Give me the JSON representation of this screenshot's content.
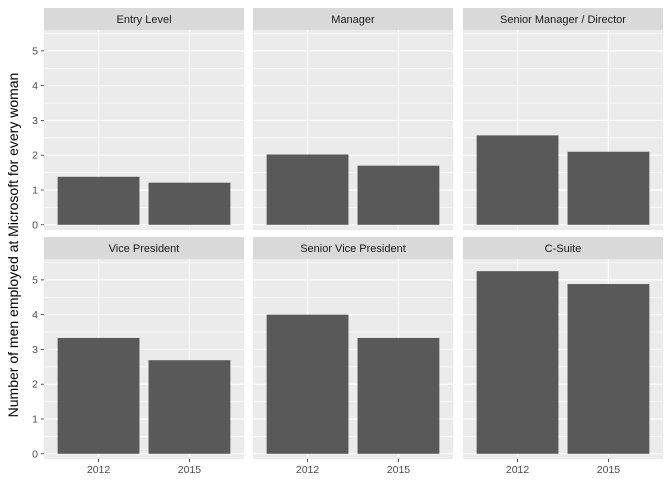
{
  "chart_data": {
    "type": "bar",
    "ylabel": "Number of men employed at Microsoft for every woman",
    "xlabel": "",
    "ylim": [
      -0.15,
      5.6
    ],
    "y_ticks": [
      0,
      1,
      2,
      3,
      4,
      5
    ],
    "categories": [
      "2012",
      "2015"
    ],
    "facet_layout": "2x3",
    "grid": true,
    "bar_color": "#595959",
    "panel_bg": "#ebebeb",
    "strip_bg": "#d9d9d9",
    "facets": [
      {
        "name": "Entry Level",
        "values": [
          1.38,
          1.21
        ]
      },
      {
        "name": "Manager",
        "values": [
          2.02,
          1.7
        ]
      },
      {
        "name": "Senior Manager / Director",
        "values": [
          2.57,
          2.1
        ]
      },
      {
        "name": "Vice President",
        "values": [
          3.33,
          2.69
        ]
      },
      {
        "name": "Senior Vice President",
        "values": [
          4.0,
          3.33
        ]
      },
      {
        "name": "C-Suite",
        "values": [
          5.25,
          4.88
        ]
      }
    ]
  }
}
